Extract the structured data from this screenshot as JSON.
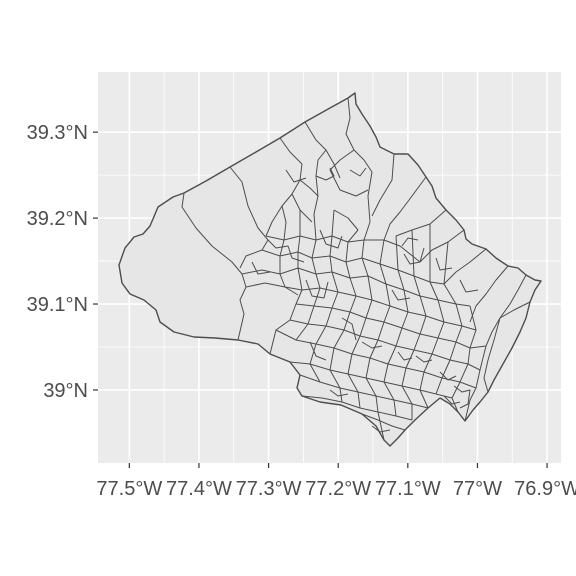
{
  "chart_data": {
    "type": "map",
    "title": "",
    "xlabel": "",
    "ylabel": "",
    "x_ticks": [
      {
        "value": -77.5,
        "label": "77.5°W"
      },
      {
        "value": -77.4,
        "label": "77.4°W"
      },
      {
        "value": -77.3,
        "label": "77.3°W"
      },
      {
        "value": -77.2,
        "label": "77.2°W"
      },
      {
        "value": -77.1,
        "label": "77.1°W"
      },
      {
        "value": -77.0,
        "label": "77°W"
      },
      {
        "value": -76.9,
        "label": "76.9°W"
      }
    ],
    "y_ticks": [
      {
        "value": 39.0,
        "label": "39°N"
      },
      {
        "value": 39.1,
        "label": "39.1°N"
      },
      {
        "value": 39.2,
        "label": "39.2°N"
      },
      {
        "value": 39.3,
        "label": "39.3°N"
      }
    ],
    "xlim": [
      -77.545,
      -76.88
    ],
    "ylim": [
      38.915,
      39.37
    ],
    "grid": true,
    "legend": "none",
    "colors": {
      "panel_background": "#EBEBEB",
      "grid_line": "#FFFFFF",
      "region_fill": "#E6E6E6",
      "region_border": "#4D4D4D",
      "tick_text": "#4D4D4D",
      "page_background": "#FFFFFF"
    },
    "features": "census tract boundaries"
  }
}
